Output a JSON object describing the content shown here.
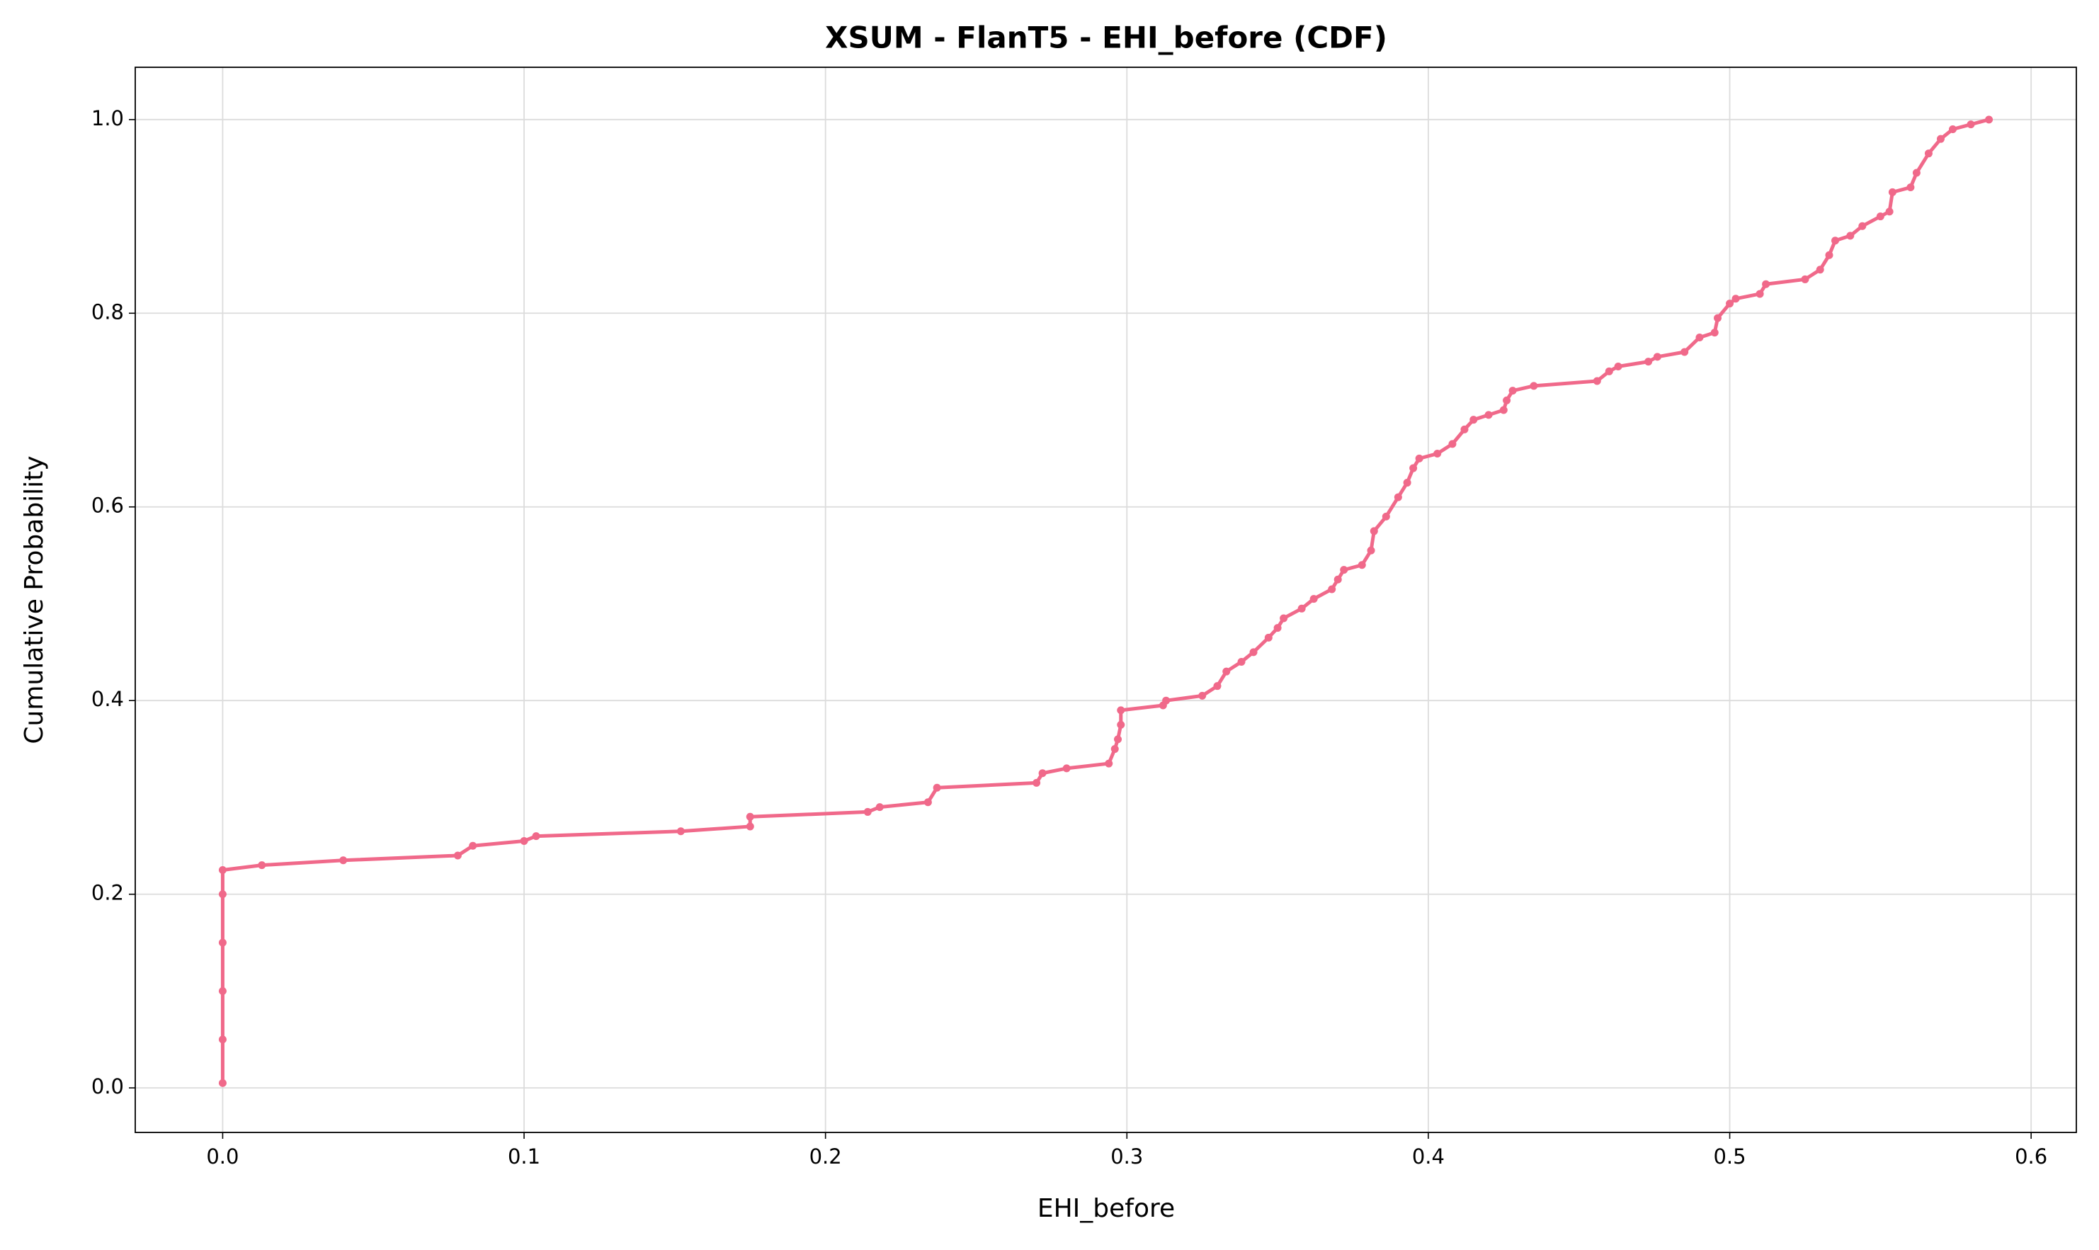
{
  "chart_data": {
    "type": "line",
    "title": "XSUM - FlanT5 - EHI_before (CDF)",
    "xlabel": "EHI_before",
    "ylabel": "Cumulative Probability",
    "x": [
      0,
      0,
      0,
      0,
      0,
      0,
      0.013,
      0.04,
      0.078,
      0.083,
      0.1,
      0.104,
      0.152,
      0.175,
      0.175,
      0.214,
      0.218,
      0.234,
      0.237,
      0.27,
      0.272,
      0.28,
      0.294,
      0.296,
      0.297,
      0.298,
      0.298,
      0.312,
      0.313,
      0.325,
      0.33,
      0.333,
      0.338,
      0.342,
      0.347,
      0.35,
      0.352,
      0.358,
      0.362,
      0.368,
      0.37,
      0.372,
      0.378,
      0.381,
      0.382,
      0.386,
      0.39,
      0.393,
      0.395,
      0.397,
      0.403,
      0.408,
      0.412,
      0.415,
      0.42,
      0.425,
      0.426,
      0.428,
      0.435,
      0.456,
      0.46,
      0.463,
      0.473,
      0.476,
      0.485,
      0.49,
      0.495,
      0.496,
      0.5,
      0.502,
      0.51,
      0.512,
      0.525,
      0.53,
      0.533,
      0.535,
      0.54,
      0.544,
      0.55,
      0.553,
      0.554,
      0.56,
      0.562,
      0.566,
      0.57,
      0.574,
      0.58,
      0.586
    ],
    "series": [
      {
        "color": "#f0698a",
        "values": [
          0.005,
          0.05,
          0.1,
          0.15,
          0.2,
          0.225,
          0.23,
          0.235,
          0.24,
          0.25,
          0.255,
          0.26,
          0.265,
          0.27,
          0.28,
          0.285,
          0.29,
          0.295,
          0.31,
          0.315,
          0.325,
          0.33,
          0.335,
          0.35,
          0.36,
          0.375,
          0.39,
          0.395,
          0.4,
          0.405,
          0.415,
          0.43,
          0.44,
          0.45,
          0.465,
          0.475,
          0.485,
          0.495,
          0.505,
          0.515,
          0.525,
          0.535,
          0.54,
          0.555,
          0.575,
          0.59,
          0.61,
          0.625,
          0.64,
          0.65,
          0.655,
          0.665,
          0.68,
          0.69,
          0.695,
          0.7,
          0.71,
          0.72,
          0.725,
          0.73,
          0.74,
          0.745,
          0.75,
          0.755,
          0.76,
          0.775,
          0.78,
          0.795,
          0.81,
          0.815,
          0.82,
          0.83,
          0.835,
          0.845,
          0.86,
          0.875,
          0.88,
          0.89,
          0.9,
          0.905,
          0.925,
          0.93,
          0.945,
          0.965,
          0.98,
          0.99,
          0.995,
          1.0
        ]
      }
    ],
    "xlim": [
      -0.029,
      0.615
    ],
    "ylim": [
      -0.046,
      1.054
    ],
    "xticks": [
      {
        "value": 0,
        "label": "0.0"
      },
      0.1,
      0.2,
      0.3,
      0.4,
      0.5,
      0.6
    ],
    "yticks": [
      {
        "value": 0,
        "label": "0.0"
      },
      0.2,
      0.4,
      0.6,
      0.8,
      {
        "value": 1,
        "label": "1.0"
      }
    ],
    "grid": true
  }
}
